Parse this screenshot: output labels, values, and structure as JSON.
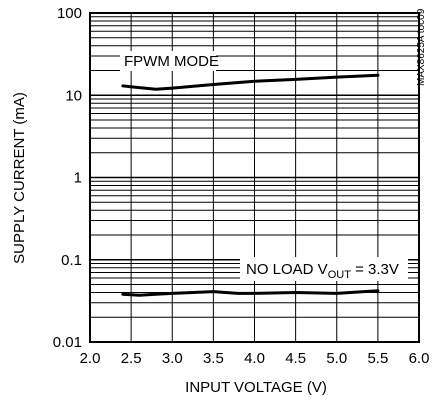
{
  "chart_data": {
    "type": "line",
    "xlabel": "INPUT VOLTAGE (V)",
    "ylabel": "SUPPLY CURRENT (mA)",
    "xlim": [
      2.0,
      6.0
    ],
    "ylim": [
      0.01,
      100
    ],
    "y_scale": "log",
    "grid": true,
    "x_ticks": [
      "2.0",
      "2.5",
      "3.0",
      "3.5",
      "4.0",
      "4.5",
      "5.0",
      "5.5",
      "6.0"
    ],
    "y_ticks": [
      "0.01",
      "0.1",
      "1",
      "10",
      "100"
    ],
    "watermark": "MAX8625A toc09",
    "annotations": {
      "fpwm": "FPWM MODE",
      "noload_prefix": "NO LOAD V",
      "noload_sub": "OUT",
      "noload_suffix": " = 3.3V"
    },
    "series": [
      {
        "x": [
          2.4,
          2.6,
          2.8,
          3.0,
          3.5,
          4.0,
          4.5,
          5.0,
          5.5
        ],
        "y": [
          13.0,
          12.4,
          11.8,
          12.2,
          13.5,
          14.8,
          15.6,
          16.6,
          17.5
        ]
      },
      {
        "x": [
          2.4,
          2.6,
          2.8,
          3.0,
          3.5,
          3.8,
          4.0,
          4.5,
          5.0,
          5.5
        ],
        "y": [
          0.038,
          0.037,
          0.038,
          0.039,
          0.041,
          0.039,
          0.039,
          0.04,
          0.039,
          0.042
        ]
      }
    ]
  }
}
